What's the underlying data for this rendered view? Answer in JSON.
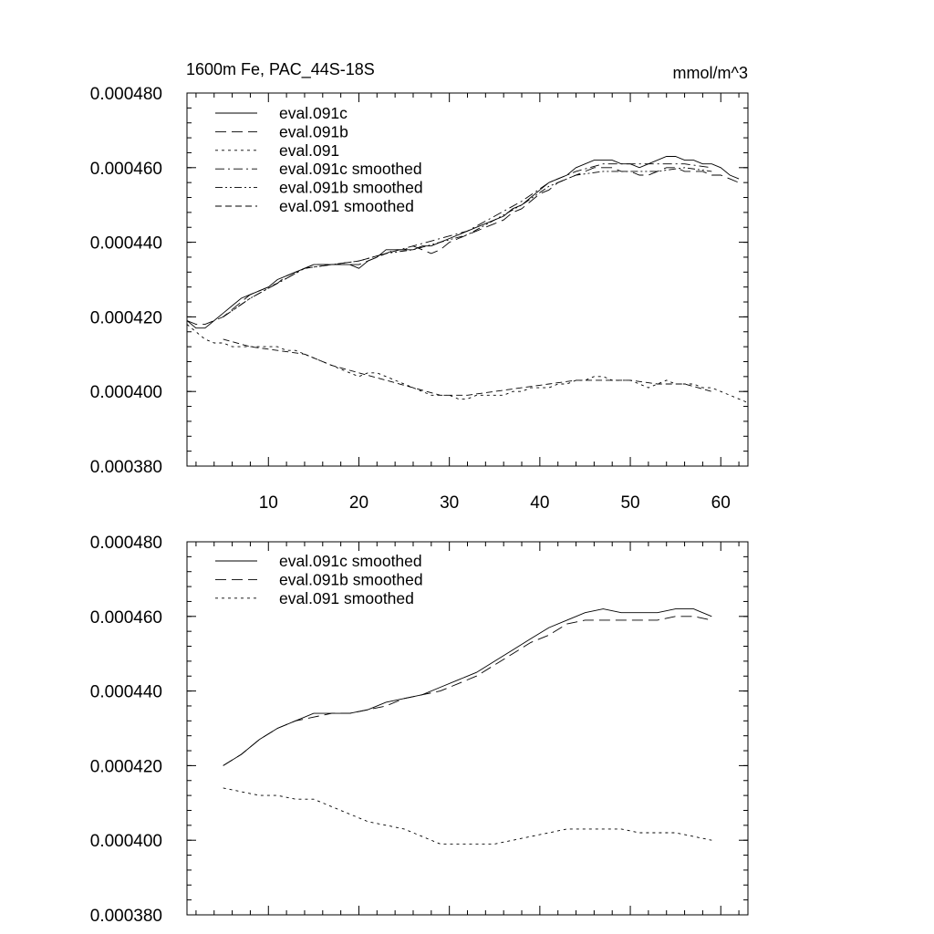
{
  "chart_data": [
    {
      "type": "line",
      "title": "1600m Fe, PAC_44S-18S",
      "units": "mmol/m^3",
      "xlim": [
        1,
        63
      ],
      "ylim": [
        0.00038,
        0.00048
      ],
      "yticks": [
        0.00038,
        0.0004,
        0.00042,
        0.00044,
        0.00046,
        0.00048
      ],
      "ytick_labels": [
        "0.000380",
        "0.000400",
        "0.000420",
        "0.000440",
        "0.000460",
        "0.000480"
      ],
      "xticks": [
        10,
        20,
        30,
        40,
        50,
        60
      ],
      "xtick_labels": [
        "10",
        "20",
        "30",
        "40",
        "50",
        "60"
      ],
      "legend_position": "top-left",
      "series": [
        {
          "name": "eval.091c",
          "dash": "solid",
          "x": [
            1,
            2,
            3,
            4,
            5,
            6,
            7,
            8,
            9,
            10,
            11,
            12,
            13,
            14,
            15,
            16,
            17,
            18,
            19,
            20,
            21,
            22,
            23,
            24,
            25,
            26,
            27,
            28,
            29,
            30,
            31,
            32,
            33,
            34,
            35,
            36,
            37,
            38,
            39,
            40,
            41,
            42,
            43,
            44,
            45,
            46,
            47,
            48,
            49,
            50,
            51,
            52,
            53,
            54,
            55,
            56,
            57,
            58,
            59,
            60,
            61,
            62
          ],
          "y": [
            0.000419,
            0.000417,
            0.000417,
            0.000419,
            0.000421,
            0.000423,
            0.000425,
            0.000426,
            0.000427,
            0.000428,
            0.00043,
            0.000431,
            0.000432,
            0.000433,
            0.000434,
            0.000434,
            0.000434,
            0.000434,
            0.000434,
            0.000433,
            0.000435,
            0.000436,
            0.000438,
            0.000438,
            0.000438,
            0.000438,
            0.000439,
            0.000439,
            0.00044,
            0.000441,
            0.000442,
            0.000443,
            0.000444,
            0.000445,
            0.000446,
            0.000447,
            0.000449,
            0.00045,
            0.000452,
            0.000454,
            0.000456,
            0.000457,
            0.000458,
            0.00046,
            0.000461,
            0.000462,
            0.000462,
            0.000462,
            0.000461,
            0.000461,
            0.00046,
            0.000461,
            0.000462,
            0.000463,
            0.000463,
            0.000462,
            0.000462,
            0.000461,
            0.000461,
            0.00046,
            0.000458,
            0.000457
          ]
        },
        {
          "name": "eval.091b",
          "dash": "long-dash",
          "x": [
            1,
            2,
            3,
            4,
            5,
            6,
            7,
            8,
            9,
            10,
            11,
            12,
            13,
            14,
            15,
            16,
            17,
            18,
            19,
            20,
            21,
            22,
            23,
            24,
            25,
            26,
            27,
            28,
            29,
            30,
            31,
            32,
            33,
            34,
            35,
            36,
            37,
            38,
            39,
            40,
            41,
            42,
            43,
            44,
            45,
            46,
            47,
            48,
            49,
            50,
            51,
            52,
            53,
            54,
            55,
            56,
            57,
            58,
            59,
            60,
            61,
            62
          ],
          "y": [
            0.000419,
            0.000418,
            0.000418,
            0.000419,
            0.00042,
            0.000422,
            0.000424,
            0.000426,
            0.000427,
            0.000428,
            0.000429,
            0.000431,
            0.000432,
            0.000433,
            0.000434,
            0.000434,
            0.000434,
            0.000434,
            0.000434,
            0.000434,
            0.000435,
            0.000436,
            0.000437,
            0.000438,
            0.000438,
            0.000439,
            0.000438,
            0.000437,
            0.000438,
            0.00044,
            0.000441,
            0.000442,
            0.000443,
            0.000444,
            0.000445,
            0.000446,
            0.000448,
            0.000449,
            0.000451,
            0.000453,
            0.000454,
            0.000456,
            0.000457,
            0.000458,
            0.000459,
            0.00046,
            0.00046,
            0.00046,
            0.000459,
            0.000459,
            0.000458,
            0.000458,
            0.000459,
            0.00046,
            0.00046,
            0.000459,
            0.000459,
            0.000459,
            0.000458,
            0.000458,
            0.000457,
            0.000456
          ]
        },
        {
          "name": "eval.091",
          "dash": "short-dash",
          "x": [
            1,
            2,
            3,
            4,
            5,
            6,
            7,
            8,
            9,
            10,
            11,
            12,
            13,
            14,
            15,
            16,
            17,
            18,
            19,
            20,
            21,
            22,
            23,
            24,
            25,
            26,
            27,
            28,
            29,
            30,
            31,
            32,
            33,
            34,
            35,
            36,
            37,
            38,
            39,
            40,
            41,
            42,
            43,
            44,
            45,
            46,
            47,
            48,
            49,
            50,
            51,
            52,
            53,
            54,
            55,
            56,
            57,
            58,
            59,
            60,
            61,
            62,
            63
          ],
          "y": [
            0.000418,
            0.000416,
            0.000414,
            0.000413,
            0.000413,
            0.000412,
            0.000412,
            0.000412,
            0.000412,
            0.000412,
            0.000412,
            0.000411,
            0.000411,
            0.00041,
            0.000409,
            0.000408,
            0.000407,
            0.000406,
            0.000405,
            0.000404,
            0.000405,
            0.000405,
            0.000404,
            0.000403,
            0.000402,
            0.000401,
            0.0004,
            0.000399,
            0.000399,
            0.000399,
            0.000398,
            0.000398,
            0.000399,
            0.000399,
            0.000399,
            0.000399,
            0.0004,
            0.0004,
            0.000401,
            0.000401,
            0.000401,
            0.000402,
            0.000402,
            0.000403,
            0.000403,
            0.000404,
            0.000404,
            0.000403,
            0.000403,
            0.000403,
            0.000402,
            0.000401,
            0.000402,
            0.000403,
            0.000402,
            0.000402,
            0.000402,
            0.000401,
            0.000401,
            0.0004,
            0.000399,
            0.000398,
            0.000397
          ]
        },
        {
          "name": "eval.091c smoothed",
          "dash": "dash-dot",
          "x": [
            5,
            8,
            11,
            14,
            17,
            20,
            23,
            26,
            29,
            32,
            35,
            38,
            41,
            44,
            47,
            50,
            53,
            56,
            59
          ],
          "y": [
            0.00042,
            0.000425,
            0.000429,
            0.000433,
            0.000434,
            0.000435,
            0.000437,
            0.000439,
            0.000441,
            0.000443,
            0.000447,
            0.000451,
            0.000456,
            0.000459,
            0.000461,
            0.000461,
            0.000461,
            0.000461,
            0.00046
          ]
        },
        {
          "name": "eval.091b smoothed",
          "dash": "dash-dot-dot",
          "x": [
            5,
            8,
            11,
            14,
            17,
            20,
            23,
            26,
            29,
            32,
            35,
            38,
            41,
            44,
            47,
            50,
            53,
            56,
            59
          ],
          "y": [
            0.00042,
            0.000425,
            0.000429,
            0.000433,
            0.000434,
            0.000435,
            0.000437,
            0.000438,
            0.00044,
            0.000442,
            0.000446,
            0.00045,
            0.000455,
            0.000458,
            0.000459,
            0.000459,
            0.000459,
            0.00046,
            0.000459
          ]
        },
        {
          "name": "eval.091 smoothed",
          "dash": "medium-dash",
          "x": [
            5,
            8,
            11,
            14,
            17,
            20,
            23,
            26,
            29,
            32,
            35,
            38,
            41,
            44,
            47,
            50,
            53,
            56,
            59
          ],
          "y": [
            0.000414,
            0.000412,
            0.000411,
            0.00041,
            0.000407,
            0.000405,
            0.000403,
            0.000401,
            0.000399,
            0.000399,
            0.0004,
            0.000401,
            0.000402,
            0.000403,
            0.000403,
            0.000403,
            0.000402,
            0.000402,
            0.0004
          ]
        }
      ]
    },
    {
      "type": "line",
      "title": "",
      "xlim": [
        1,
        63
      ],
      "ylim": [
        0.00038,
        0.00048
      ],
      "yticks": [
        0.00038,
        0.0004,
        0.00042,
        0.00044,
        0.00046,
        0.00048
      ],
      "ytick_labels": [
        "0.000380",
        "0.000400",
        "0.000420",
        "0.000440",
        "0.000460",
        "0.000480"
      ],
      "xticks": [
        10,
        20,
        30,
        40,
        50,
        60
      ],
      "xtick_labels": [],
      "legend_position": "top-left",
      "series": [
        {
          "name": "eval.091c smoothed",
          "dash": "solid",
          "x": [
            5,
            7,
            9,
            11,
            13,
            15,
            17,
            19,
            21,
            23,
            25,
            27,
            29,
            31,
            33,
            35,
            37,
            39,
            41,
            43,
            45,
            47,
            49,
            51,
            53,
            55,
            57,
            59
          ],
          "y": [
            0.00042,
            0.000423,
            0.000427,
            0.00043,
            0.000432,
            0.000434,
            0.000434,
            0.000434,
            0.000435,
            0.000437,
            0.000438,
            0.000439,
            0.000441,
            0.000443,
            0.000445,
            0.000448,
            0.000451,
            0.000454,
            0.000457,
            0.000459,
            0.000461,
            0.000462,
            0.000461,
            0.000461,
            0.000461,
            0.000462,
            0.000462,
            0.00046
          ]
        },
        {
          "name": "eval.091b smoothed",
          "dash": "long-dash",
          "x": [
            5,
            7,
            9,
            11,
            13,
            15,
            17,
            19,
            21,
            23,
            25,
            27,
            29,
            31,
            33,
            35,
            37,
            39,
            41,
            43,
            45,
            47,
            49,
            51,
            53,
            55,
            57,
            59
          ],
          "y": [
            0.00042,
            0.000423,
            0.000427,
            0.00043,
            0.000432,
            0.000433,
            0.000434,
            0.000434,
            0.000435,
            0.000436,
            0.000438,
            0.000439,
            0.00044,
            0.000442,
            0.000444,
            0.000447,
            0.00045,
            0.000453,
            0.000455,
            0.000458,
            0.000459,
            0.000459,
            0.000459,
            0.000459,
            0.000459,
            0.00046,
            0.00046,
            0.000459
          ]
        },
        {
          "name": "eval.091 smoothed",
          "dash": "short-dash",
          "x": [
            5,
            7,
            9,
            11,
            13,
            15,
            17,
            19,
            21,
            23,
            25,
            27,
            29,
            31,
            33,
            35,
            37,
            39,
            41,
            43,
            45,
            47,
            49,
            51,
            53,
            55,
            57,
            59
          ],
          "y": [
            0.000414,
            0.000413,
            0.000412,
            0.000412,
            0.000411,
            0.000411,
            0.000409,
            0.000407,
            0.000405,
            0.000404,
            0.000403,
            0.000401,
            0.000399,
            0.000399,
            0.000399,
            0.000399,
            0.0004,
            0.000401,
            0.000402,
            0.000403,
            0.000403,
            0.000403,
            0.000403,
            0.000402,
            0.000402,
            0.000402,
            0.000401,
            0.0004
          ]
        }
      ]
    }
  ]
}
